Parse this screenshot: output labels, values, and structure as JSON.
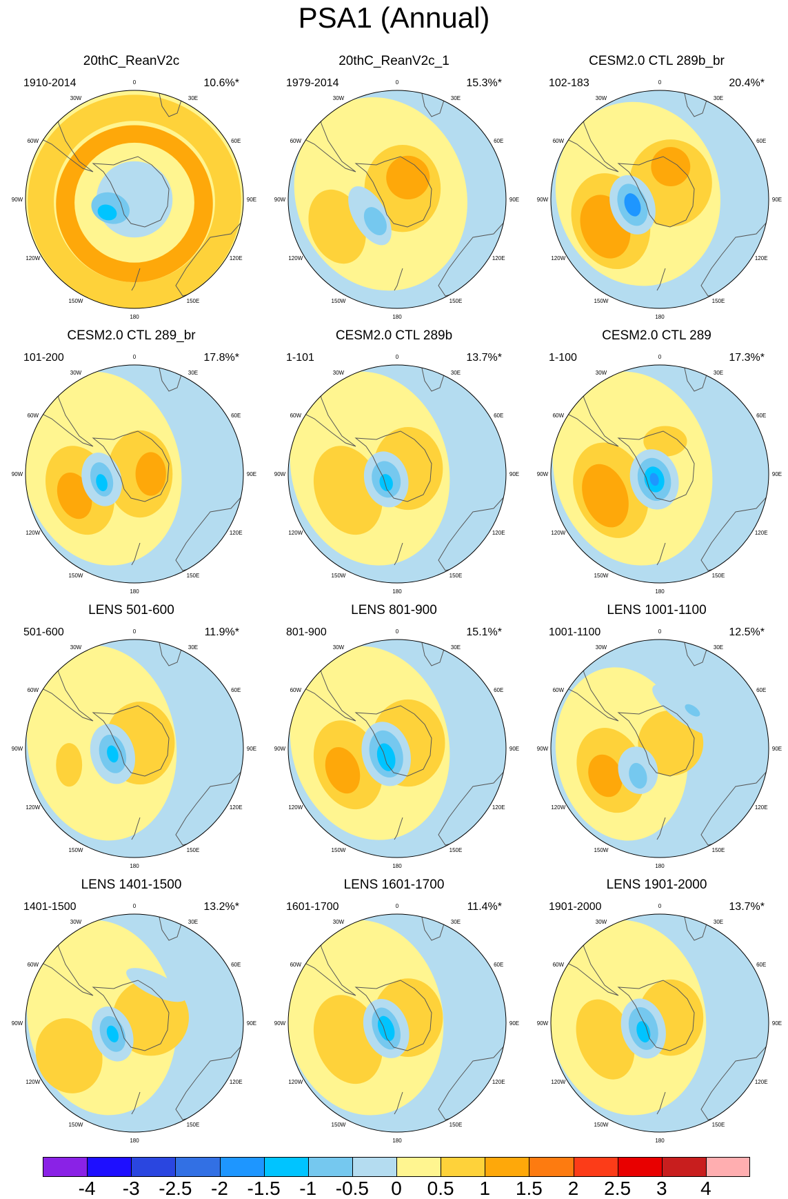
{
  "title": "PSA1 (Annual)",
  "panels": [
    {
      "title": "20thC_ReanV2c",
      "period": "1910-2014",
      "percent": "10.6%*"
    },
    {
      "title": "20thC_ReanV2c_1",
      "period": "1979-2014",
      "percent": "15.3%*"
    },
    {
      "title": "CESM2.0 CTL 289b_br",
      "period": "102-183",
      "percent": "20.4%*"
    },
    {
      "title": "CESM2.0 CTL 289_br",
      "period": "101-200",
      "percent": "17.8%*"
    },
    {
      "title": "CESM2.0 CTL 289b",
      "period": "1-101",
      "percent": "13.7%*"
    },
    {
      "title": "CESM2.0 CTL 289",
      "period": "1-100",
      "percent": "17.3%*"
    },
    {
      "title": "LENS 501-600",
      "period": "501-600",
      "percent": "11.9%*"
    },
    {
      "title": "LENS 801-900",
      "period": "801-900",
      "percent": "15.1%*"
    },
    {
      "title": "LENS 1001-1100",
      "period": "1001-1100",
      "percent": "12.5%*"
    },
    {
      "title": "LENS 1401-1500",
      "period": "1401-1500",
      "percent": "13.2%*"
    },
    {
      "title": "LENS 1601-1700",
      "period": "1601-1700",
      "percent": "11.4%*"
    },
    {
      "title": "LENS 1901-2000",
      "period": "1901-2000",
      "percent": "13.7%*"
    }
  ],
  "longitude_labels": [
    "0",
    "30E",
    "60E",
    "90E",
    "120E",
    "150E",
    "180",
    "150W",
    "120W",
    "90W",
    "60W",
    "30W"
  ],
  "colorbar": {
    "colors": [
      "#8a22e6",
      "#1e0fff",
      "#2a46e0",
      "#3270e4",
      "#1e96ff",
      "#00c4ff",
      "#75c8ef",
      "#b4dcf0",
      "#fff590",
      "#fed23a",
      "#fea80a",
      "#fd7b10",
      "#fc3c18",
      "#e80000",
      "#c81e1e",
      "#ffaeb0"
    ],
    "tick_labels": [
      "-4",
      "-3",
      "-2.5",
      "-2",
      "-1.5",
      "-1",
      "-0.5",
      "0",
      "0.5",
      "1",
      "1.5",
      "2",
      "2.5",
      "3",
      "4"
    ]
  }
}
